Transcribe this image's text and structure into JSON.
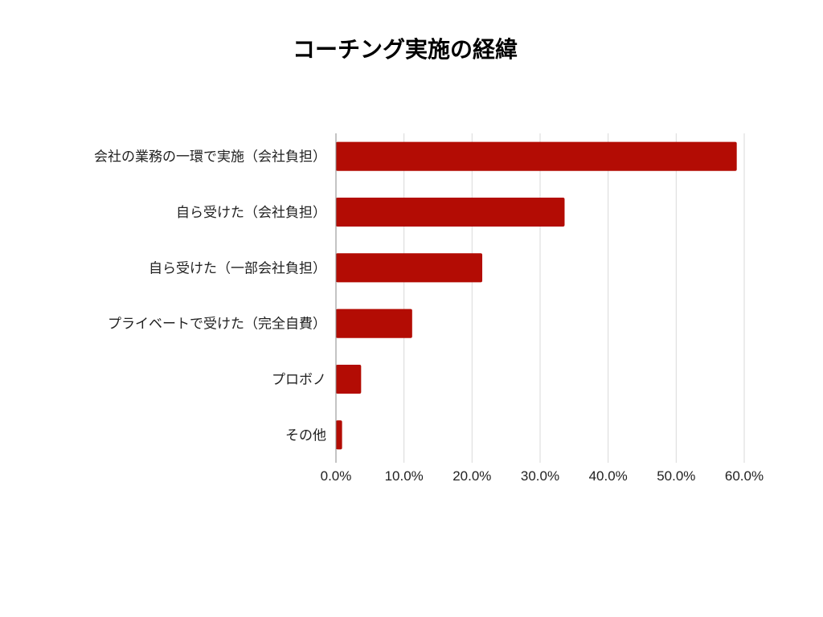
{
  "chart_data": {
    "type": "bar",
    "orientation": "horizontal",
    "title": "コーチング実施の経緯",
    "categories": [
      "会社の業務の一環で実施（会社負担）",
      "自ら受けた（会社負担）",
      "自ら受けた（一部会社負担）",
      "プライベートで受けた（完全自費）",
      "プロボノ",
      "その他"
    ],
    "values": [
      58.9,
      33.6,
      21.5,
      11.2,
      3.7,
      0.9
    ],
    "xlim": [
      0,
      60
    ],
    "x_ticks": [
      0,
      10,
      20,
      30,
      40,
      50,
      60
    ],
    "x_tick_labels": [
      "0.0%",
      "10.0%",
      "20.0%",
      "30.0%",
      "40.0%",
      "50.0%",
      "60.0%"
    ],
    "grid": true,
    "legend": "none",
    "bar_color": "#b30c04"
  }
}
